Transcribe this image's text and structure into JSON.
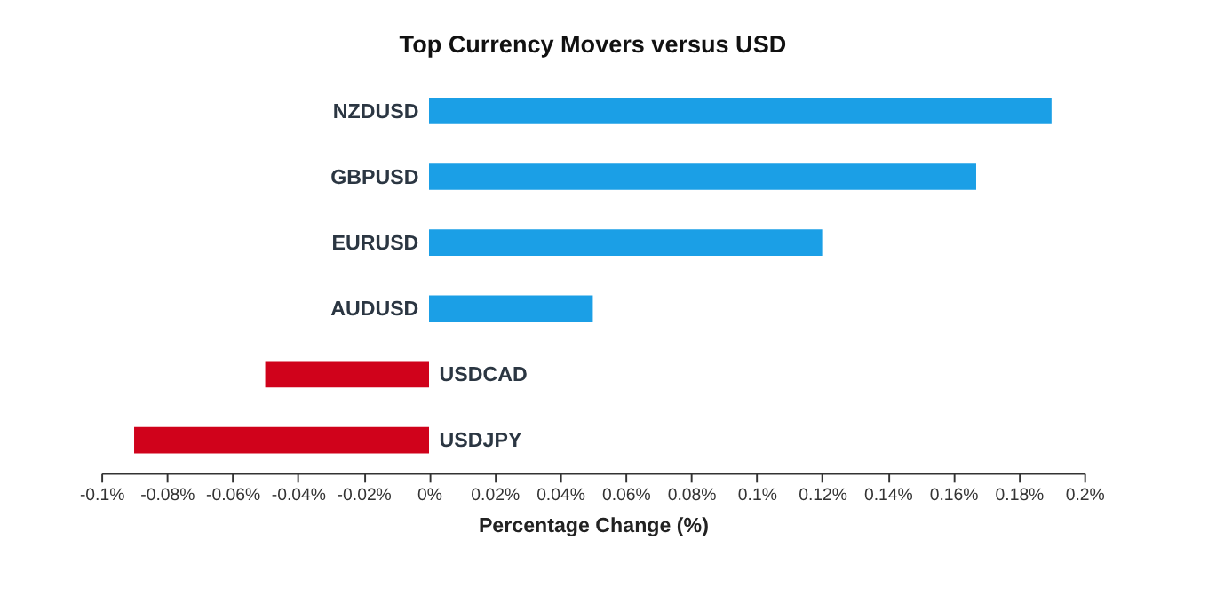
{
  "chart_data": {
    "type": "bar",
    "orientation": "horizontal",
    "title": "Top Currency Movers versus USD",
    "xlabel": "Percentage Change (%)",
    "categories": [
      "NZDUSD",
      "GBPUSD",
      "EURUSD",
      "AUDUSD",
      "USDCAD",
      "USDJPY"
    ],
    "values": [
      0.19,
      0.167,
      0.12,
      0.05,
      -0.05,
      -0.09
    ],
    "colors": [
      "#1b9fe6",
      "#1b9fe6",
      "#1b9fe6",
      "#1b9fe6",
      "#d0021b",
      "#d0021b"
    ],
    "xlim": [
      -0.1,
      0.2
    ],
    "xticks": [
      {
        "value": -0.1,
        "label": "-0.1%"
      },
      {
        "value": -0.08,
        "label": "-0.08%"
      },
      {
        "value": -0.06,
        "label": "-0.06%"
      },
      {
        "value": -0.04,
        "label": "-0.04%"
      },
      {
        "value": -0.02,
        "label": "-0.02%"
      },
      {
        "value": 0,
        "label": "0%"
      },
      {
        "value": 0.02,
        "label": "0.02%"
      },
      {
        "value": 0.04,
        "label": "0.04%"
      },
      {
        "value": 0.06,
        "label": "0.06%"
      },
      {
        "value": 0.08,
        "label": "0.08%"
      },
      {
        "value": 0.1,
        "label": "0.1%"
      },
      {
        "value": 0.12,
        "label": "0.12%"
      },
      {
        "value": 0.14,
        "label": "0.14%"
      },
      {
        "value": 0.16,
        "label": "0.16%"
      },
      {
        "value": 0.18,
        "label": "0.18%"
      },
      {
        "value": 0.2,
        "label": "0.2%"
      }
    ],
    "grid": false
  }
}
